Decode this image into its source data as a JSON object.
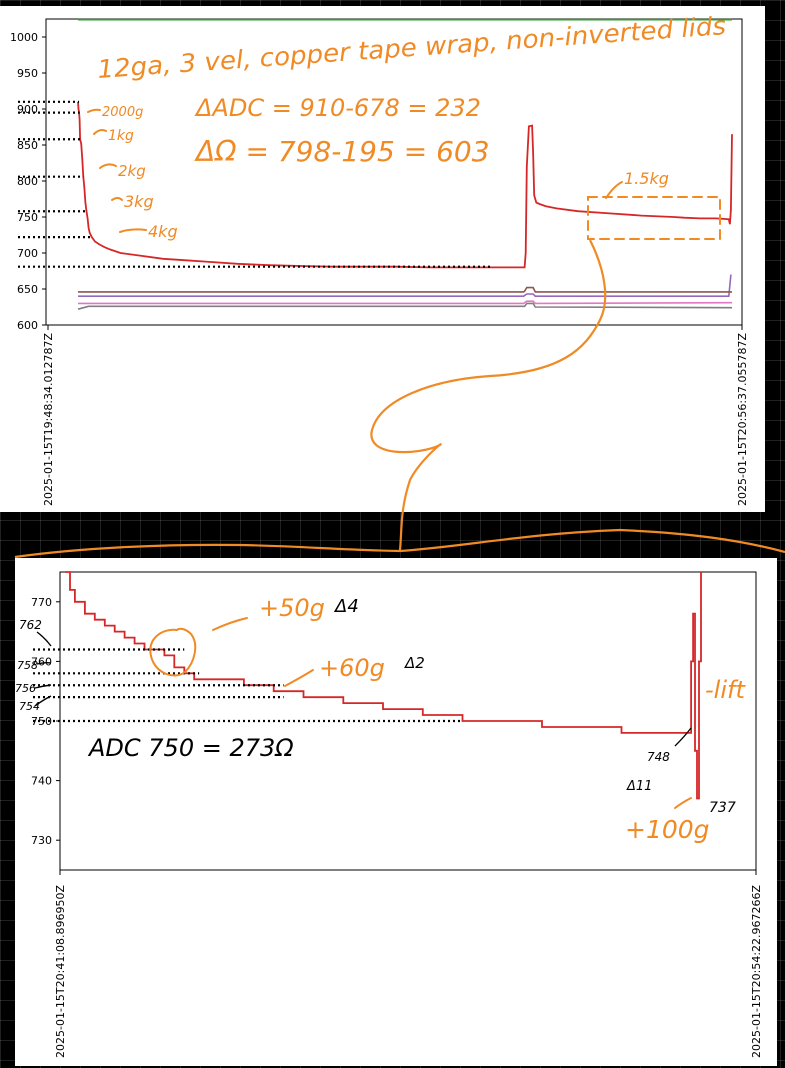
{
  "colors": {
    "orange_ink": "#f08a24",
    "red_series": "#d62728",
    "green_series": "#2ca02c",
    "brown_series": "#8c564b",
    "purple_series": "#9467bd",
    "gray_series": "#7f7f7f",
    "pink_series": "#e377c2"
  },
  "top_chart": {
    "x_tick_start": "2025-01-15T19:48:34.012787Z",
    "x_tick_end": "2025-01-15T20:56:37.055787Z",
    "y_ticks": [
      "1000",
      "950",
      "900",
      "850",
      "800",
      "750",
      "700",
      "650",
      "600"
    ],
    "annotations": {
      "title_note": "12ga, 3 vel, copper tape wrap, non-inverted lids",
      "delta_adc": "ΔADC = 910-678 = 232",
      "delta_ohm": "ΔΩ = 798-195 = 603",
      "w2000g": "2000g",
      "w1kg": "1kg",
      "w2kg": "2kg",
      "w3kg": "3kg",
      "w4kg": "4kg",
      "w15kg": "1.5kg"
    }
  },
  "bottom_chart": {
    "x_tick_start": "2025-01-15T20:41:08.896950Z",
    "x_tick_end": "2025-01-15T20:54:22.967266Z",
    "y_ticks": [
      "770",
      "760",
      "750",
      "740",
      "730"
    ],
    "annotations": {
      "l762": "762",
      "l758": "758",
      "l756": "756",
      "l754": "754",
      "plus50": "+50g",
      "d4": "Δ4",
      "plus60": "+60g",
      "d2": "Δ2",
      "adc_note": "ADC 750 = 273Ω",
      "lift": "-lift",
      "l748": "748",
      "d11": "Δ11",
      "l737": "737",
      "plus100": "+100g"
    }
  },
  "chart_data": [
    {
      "type": "line",
      "title": "",
      "xlabel": "",
      "ylabel": "",
      "x_range": [
        "2025-01-15T19:48:34.012787Z",
        "2025-01-15T20:56:37.055787Z"
      ],
      "ylim": [
        600,
        1025
      ],
      "y_ticks": [
        600,
        650,
        700,
        750,
        800,
        850,
        900,
        950,
        1000
      ],
      "series": [
        {
          "color": "#d62728",
          "points": [
            [
              0,
              910
            ],
            [
              0.5,
              900
            ],
            [
              1,
              895
            ],
            [
              1.5,
              885
            ],
            [
              2,
              858
            ],
            [
              3,
              852
            ],
            [
              4,
              830
            ],
            [
              5,
              806
            ],
            [
              6,
              790
            ],
            [
              7,
              770
            ],
            [
              8,
              758
            ],
            [
              9,
              748
            ],
            [
              10,
              735
            ],
            [
              11,
              728
            ],
            [
              13,
              722
            ],
            [
              16,
              716
            ],
            [
              20,
              712
            ],
            [
              25,
              708
            ],
            [
              30,
              705
            ],
            [
              40,
              700
            ],
            [
              60,
              696
            ],
            [
              80,
              692
            ],
            [
              100,
              690
            ],
            [
              120,
              688
            ],
            [
              150,
              685
            ],
            [
              180,
              683
            ],
            [
              210,
              682
            ],
            [
              240,
              681
            ],
            [
              270,
              681
            ],
            [
              300,
              681
            ],
            [
              330,
              680
            ],
            [
              370,
              680
            ],
            [
              400,
              680
            ],
            [
              420,
              680
            ],
            [
              421,
              700
            ],
            [
              422,
              820
            ],
            [
              424,
              876
            ],
            [
              427,
              877
            ],
            [
              428,
              840
            ],
            [
              429,
              780
            ],
            [
              431,
              770
            ],
            [
              434,
              768
            ],
            [
              440,
              765
            ],
            [
              450,
              762
            ],
            [
              470,
              758
            ],
            [
              500,
              755
            ],
            [
              530,
              752
            ],
            [
              560,
              750
            ],
            [
              570,
              749
            ],
            [
              585,
              748
            ],
            [
              600,
              748
            ],
            [
              612,
              747
            ],
            [
              613,
              740
            ],
            [
              614,
              760
            ],
            [
              615,
              865
            ]
          ]
        },
        {
          "color": "#2ca02c",
          "points": [
            [
              0,
              1024
            ],
            [
              615,
              1024
            ]
          ]
        },
        {
          "color": "#8c564b",
          "points": [
            [
              0,
              646
            ],
            [
              200,
              646
            ],
            [
              419,
              646
            ],
            [
              420,
              647
            ],
            [
              422,
              652
            ],
            [
              428,
              652
            ],
            [
              430,
              646
            ],
            [
              615,
              646
            ]
          ]
        },
        {
          "color": "#9467bd",
          "points": [
            [
              0,
              640
            ],
            [
              419,
              640
            ],
            [
              422,
              643
            ],
            [
              428,
              643
            ],
            [
              430,
              640
            ],
            [
              612,
              640
            ],
            [
              614,
              670
            ]
          ]
        },
        {
          "color": "#7f7f7f",
          "points": [
            [
              0,
              622
            ],
            [
              10,
              626
            ],
            [
              200,
              626
            ],
            [
              420,
              626
            ],
            [
              422,
              630
            ],
            [
              428,
              630
            ],
            [
              430,
              625
            ],
            [
              615,
              624
            ]
          ]
        },
        {
          "color": "#e377c2",
          "points": [
            [
              0,
              630
            ],
            [
              419,
              630
            ],
            [
              422,
              633
            ],
            [
              428,
              633
            ],
            [
              430,
              630
            ],
            [
              615,
              631
            ]
          ]
        }
      ]
    },
    {
      "type": "line",
      "title": "",
      "xlabel": "",
      "ylabel": "",
      "x_range": [
        "2025-01-15T20:41:08.896950Z",
        "2025-01-15T20:54:22.967266Z"
      ],
      "ylim": [
        725,
        775
      ],
      "y_ticks": [
        730,
        740,
        750,
        760,
        770
      ],
      "series": [
        {
          "color": "#d62728",
          "points": [
            [
              0,
              775
            ],
            [
              5,
              772
            ],
            [
              10,
              770
            ],
            [
              20,
              768
            ],
            [
              30,
              767
            ],
            [
              40,
              766
            ],
            [
              50,
              765
            ],
            [
              60,
              764
            ],
            [
              70,
              763
            ],
            [
              80,
              762
            ],
            [
              90,
              762
            ],
            [
              100,
              761
            ],
            [
              110,
              759
            ],
            [
              120,
              758
            ],
            [
              130,
              757
            ],
            [
              150,
              757
            ],
            [
              180,
              756
            ],
            [
              210,
              755
            ],
            [
              240,
              754
            ],
            [
              280,
              753
            ],
            [
              320,
              752
            ],
            [
              360,
              751
            ],
            [
              400,
              750
            ],
            [
              440,
              750
            ],
            [
              480,
              749
            ],
            [
              520,
              749
            ],
            [
              560,
              748
            ],
            [
              600,
              748
            ],
            [
              628,
              748
            ],
            [
              630,
              760
            ],
            [
              632,
              768
            ],
            [
              634,
              745
            ],
            [
              636,
              737
            ],
            [
              638,
              760
            ],
            [
              640,
              775
            ]
          ]
        }
      ]
    }
  ]
}
